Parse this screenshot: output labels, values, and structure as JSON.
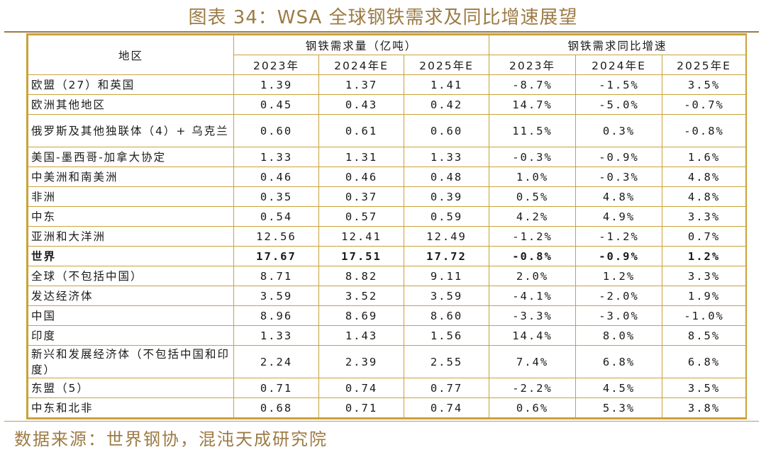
{
  "title": "图表 34：WSA 全球钢铁需求及同比增速展望",
  "table": {
    "region_header": "地区",
    "group_demand": "钢铁需求量（亿吨）",
    "group_growth": "钢铁需求同比增速",
    "years": [
      "2023年",
      "2024年E",
      "2025年E",
      "2023年",
      "2024年E",
      "2025年E"
    ],
    "rows": [
      {
        "region": "欧盟（27）和英国",
        "d2023": "1.39",
        "d2024": "1.37",
        "d2025": "1.41",
        "g2023": "-8.7%",
        "g2024": "-1.5%",
        "g2025": "3.5%"
      },
      {
        "region": "欧洲其他地区",
        "d2023": "0.45",
        "d2024": "0.43",
        "d2025": "0.42",
        "g2023": "14.7%",
        "g2024": "-5.0%",
        "g2025": "-0.7%"
      },
      {
        "region": "俄罗斯及其他独联体（4）+ 乌克兰",
        "d2023": "0.60",
        "d2024": "0.61",
        "d2025": "0.60",
        "g2023": "11.5%",
        "g2024": "0.3%",
        "g2025": "-0.8%"
      },
      {
        "region": "美国-墨西哥-加拿大协定",
        "d2023": "1.33",
        "d2024": "1.31",
        "d2025": "1.33",
        "g2023": "-0.3%",
        "g2024": "-0.9%",
        "g2025": "1.6%"
      },
      {
        "region": "中美洲和南美洲",
        "d2023": "0.46",
        "d2024": "0.46",
        "d2025": "0.48",
        "g2023": "1.0%",
        "g2024": "-0.3%",
        "g2025": "4.8%"
      },
      {
        "region": "非洲",
        "d2023": "0.35",
        "d2024": "0.37",
        "d2025": "0.39",
        "g2023": "0.5%",
        "g2024": "4.8%",
        "g2025": "4.8%"
      },
      {
        "region": "中东",
        "d2023": "0.54",
        "d2024": "0.57",
        "d2025": "0.59",
        "g2023": "4.2%",
        "g2024": "4.9%",
        "g2025": "3.3%"
      },
      {
        "region": "亚洲和大洋洲",
        "d2023": "12.56",
        "d2024": "12.41",
        "d2025": "12.49",
        "g2023": "-1.2%",
        "g2024": "-1.2%",
        "g2025": "0.7%"
      },
      {
        "region": "世界",
        "d2023": "17.67",
        "d2024": "17.51",
        "d2025": "17.72",
        "g2023": "-0.8%",
        "g2024": "-0.9%",
        "g2025": "1.2%"
      },
      {
        "region": "全球（不包括中国）",
        "d2023": "8.71",
        "d2024": "8.82",
        "d2025": "9.11",
        "g2023": "2.0%",
        "g2024": "1.2%",
        "g2025": "3.3%"
      },
      {
        "region": "发达经济体",
        "d2023": "3.59",
        "d2024": "3.52",
        "d2025": "3.59",
        "g2023": "-4.1%",
        "g2024": "-2.0%",
        "g2025": "1.9%"
      },
      {
        "region": "中国",
        "d2023": "8.96",
        "d2024": "8.69",
        "d2025": "8.60",
        "g2023": "-3.3%",
        "g2024": "-3.0%",
        "g2025": "-1.0%"
      },
      {
        "region": "印度",
        "d2023": "1.33",
        "d2024": "1.43",
        "d2025": "1.56",
        "g2023": "14.4%",
        "g2024": "8.0%",
        "g2025": "8.5%"
      },
      {
        "region": "新兴和发展经济体（不包括中国和印度）",
        "d2023": "2.24",
        "d2024": "2.39",
        "d2025": "2.55",
        "g2023": "7.4%",
        "g2024": "6.8%",
        "g2025": "6.8%"
      },
      {
        "region": "东盟（5）",
        "d2023": "0.71",
        "d2024": "0.74",
        "d2025": "0.77",
        "g2023": "-2.2%",
        "g2024": "4.5%",
        "g2025": "3.5%"
      },
      {
        "region": "中东和北非",
        "d2023": "0.68",
        "d2024": "0.71",
        "d2025": "0.74",
        "g2023": "0.6%",
        "g2024": "5.3%",
        "g2025": "3.8%"
      }
    ]
  },
  "source": "数据来源：世界钢协，混沌天成研究院",
  "colors": {
    "accent": "#9c7b45",
    "border": "#c9a23a"
  }
}
